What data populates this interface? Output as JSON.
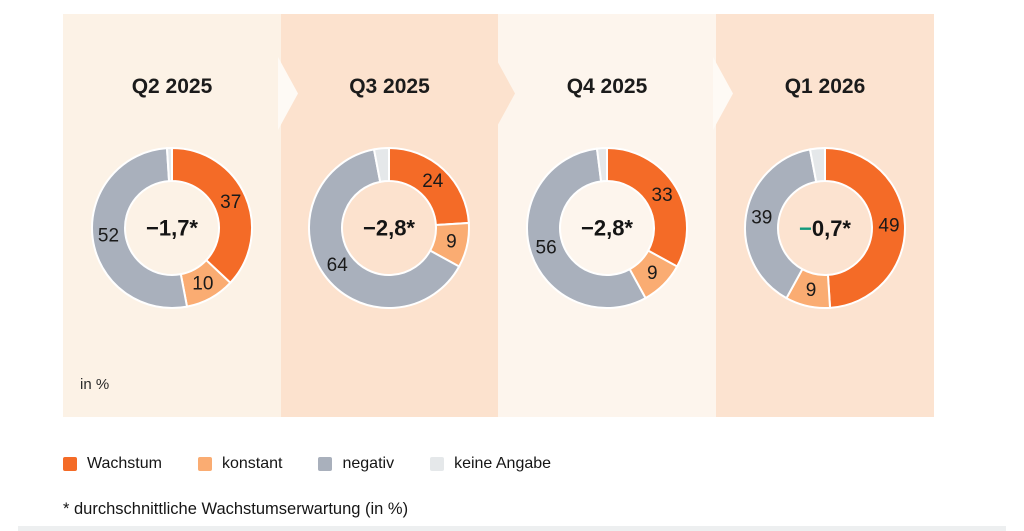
{
  "colors": {
    "wachstum": "#F46B27",
    "konstant": "#FAAC72",
    "negativ": "#A9B0BC",
    "keine_angabe": "#E5E8EA",
    "panel_a": "#FCF2E6",
    "panel_b": "#FCE2CE",
    "panel_c": "#FDF5ED",
    "panel_d": "#FCE3D0",
    "chevron_light": "#FEFAF5",
    "center_minus_green": "#12997B"
  },
  "unit_label": "in %",
  "footnote": "* durchschnittliche Wachstumserwartung (in %)",
  "legend": {
    "items": [
      {
        "label": "Wachstum",
        "color_key": "wachstum"
      },
      {
        "label": "konstant",
        "color_key": "konstant"
      },
      {
        "label": "negativ",
        "color_key": "negativ"
      },
      {
        "label": "keine Angabe",
        "color_key": "keine_angabe"
      }
    ]
  },
  "chart_data": [
    {
      "type": "pie",
      "donut": true,
      "start_at_top": true,
      "clockwise": true,
      "title": "Q2 2025",
      "unit": "%",
      "center_label": "−1,7*",
      "center_minus_color": null,
      "segments": [
        {
          "name": "Wachstum",
          "color_key": "wachstum",
          "value": 37,
          "show_label": true
        },
        {
          "name": "konstant",
          "color_key": "konstant",
          "value": 10,
          "show_label": true
        },
        {
          "name": "negativ",
          "color_key": "negativ",
          "value": 52,
          "show_label": true
        },
        {
          "name": "keine Angabe",
          "color_key": "keine_angabe",
          "value": 1,
          "show_label": false
        }
      ]
    },
    {
      "type": "pie",
      "donut": true,
      "start_at_top": true,
      "clockwise": true,
      "title": "Q3 2025",
      "unit": "%",
      "center_label": "−2,8*",
      "center_minus_color": null,
      "segments": [
        {
          "name": "Wachstum",
          "color_key": "wachstum",
          "value": 24,
          "show_label": true
        },
        {
          "name": "konstant",
          "color_key": "konstant",
          "value": 9,
          "show_label": true
        },
        {
          "name": "negativ",
          "color_key": "negativ",
          "value": 64,
          "show_label": true
        },
        {
          "name": "keine Angabe",
          "color_key": "keine_angabe",
          "value": 3,
          "show_label": false
        }
      ]
    },
    {
      "type": "pie",
      "donut": true,
      "start_at_top": true,
      "clockwise": true,
      "title": "Q4 2025",
      "unit": "%",
      "center_label": "−2,8*",
      "center_minus_color": null,
      "segments": [
        {
          "name": "Wachstum",
          "color_key": "wachstum",
          "value": 33,
          "show_label": true
        },
        {
          "name": "konstant",
          "color_key": "konstant",
          "value": 9,
          "show_label": true
        },
        {
          "name": "negativ",
          "color_key": "negativ",
          "value": 56,
          "show_label": true
        },
        {
          "name": "keine Angabe",
          "color_key": "keine_angabe",
          "value": 2,
          "show_label": false
        }
      ]
    },
    {
      "type": "pie",
      "donut": true,
      "start_at_top": true,
      "clockwise": true,
      "title": "Q1 2026",
      "unit": "%",
      "center_label": "−0,7*",
      "center_minus_color": "#12997B",
      "segments": [
        {
          "name": "Wachstum",
          "color_key": "wachstum",
          "value": 49,
          "show_label": true
        },
        {
          "name": "konstant",
          "color_key": "konstant",
          "value": 9,
          "show_label": true
        },
        {
          "name": "negativ",
          "color_key": "negativ",
          "value": 39,
          "show_label": true
        },
        {
          "name": "keine Angabe",
          "color_key": "keine_angabe",
          "value": 3,
          "show_label": false
        }
      ]
    }
  ]
}
